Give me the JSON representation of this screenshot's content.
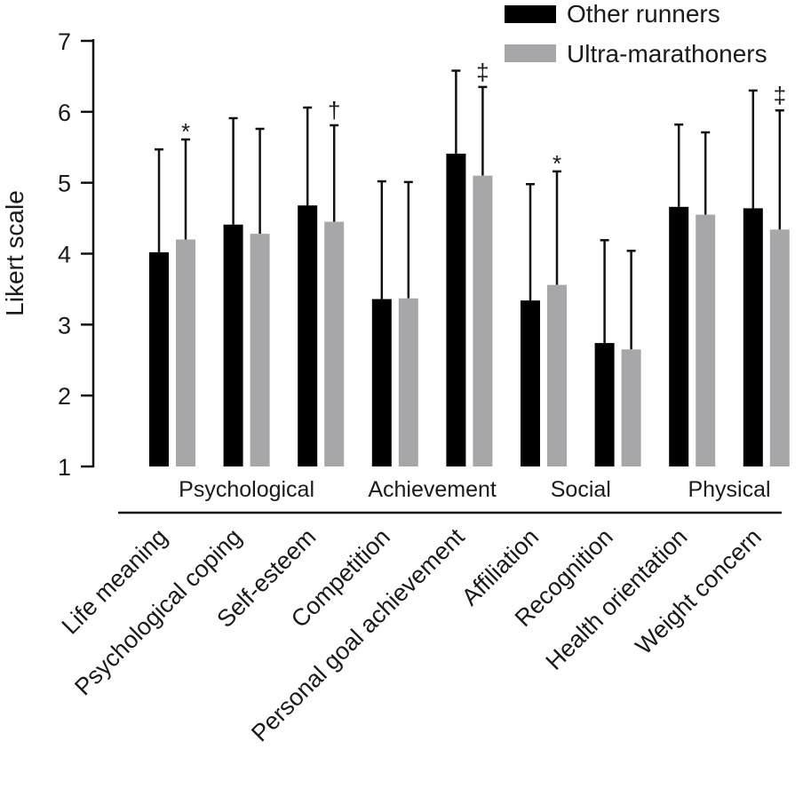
{
  "chart_data": {
    "type": "bar",
    "ylabel": "Likert scale",
    "ylim": [
      1,
      7
    ],
    "yticks": [
      1,
      2,
      3,
      4,
      5,
      6,
      7
    ],
    "categories": [
      "Life meaning",
      "Psychological coping",
      "Self-esteem",
      "Competition",
      "Personal goal achievement",
      "Affiliation",
      "Recognition",
      "Health orientation",
      "Weight concern"
    ],
    "series": [
      {
        "name": "Other runners",
        "color": "#000000",
        "values": [
          4.02,
          4.41,
          4.68,
          3.36,
          5.41,
          3.34,
          2.74,
          4.66,
          4.64
        ],
        "errors": [
          1.45,
          1.5,
          1.38,
          1.66,
          1.17,
          1.64,
          1.45,
          1.16,
          1.66
        ]
      },
      {
        "name": "Ultra-marathoners",
        "color": "#a7a7a9",
        "values": [
          4.2,
          4.28,
          4.45,
          3.37,
          5.1,
          3.56,
          2.65,
          4.55,
          4.34
        ],
        "errors": [
          1.41,
          1.48,
          1.36,
          1.64,
          1.25,
          1.6,
          1.39,
          1.16,
          1.68
        ]
      }
    ],
    "significance": [
      "*",
      "",
      "†",
      "",
      "‡",
      "*",
      "",
      "",
      "‡"
    ],
    "groups": [
      {
        "label": "Psychological",
        "from": 0,
        "to": 2
      },
      {
        "label": "Achievement",
        "from": 3,
        "to": 4
      },
      {
        "label": "Social",
        "from": 5,
        "to": 6
      },
      {
        "label": "Physical",
        "from": 7,
        "to": 8
      }
    ],
    "legend_position": "top-right",
    "grid": false
  }
}
